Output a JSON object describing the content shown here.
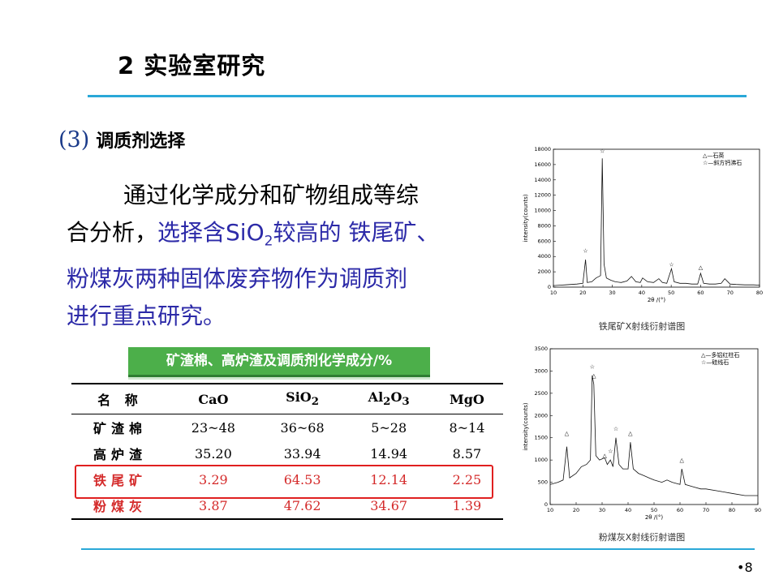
{
  "slide": {
    "title": "2 实验室研究",
    "section_num": "(3)",
    "section_title": "调质剂选择",
    "page": "•8"
  },
  "body": {
    "line1": "通过化学成分和矿物组成等综",
    "line2_black": "合分析，",
    "line2_blue_a": "选择含SiO",
    "line2_sub": "2",
    "line2_blue_b": "较高的 铁尾矿、",
    "line3": "粉煤灰两种固体废弃物作为调质剂",
    "line4": "进行重点研究。"
  },
  "table": {
    "title": "矿渣棉、高炉渣及调质剂化学成分/%",
    "headers": [
      "名  称",
      "CaO",
      "SiO",
      "Al",
      "MgO"
    ],
    "header_subs": {
      "sio2": "2",
      "al_a": "2",
      "al_b": "O",
      "al_c": "3"
    },
    "rows": [
      {
        "name": "矿渣棉",
        "CaO": "23~48",
        "SiO2": "36~68",
        "Al2O3": "5~28",
        "MgO": "8~14"
      },
      {
        "name": "高炉渣",
        "CaO": "35.20",
        "SiO2": "33.94",
        "Al2O3": "14.94",
        "MgO": "8.57"
      },
      {
        "name": "铁尾矿",
        "CaO": "3.29",
        "SiO2": "64.53",
        "Al2O3": "12.14",
        "MgO": "2.25"
      },
      {
        "name": "粉煤灰",
        "CaO": "3.87",
        "SiO2": "47.62",
        "Al2O3": "34.67",
        "MgO": "1.39"
      }
    ],
    "highlight_color": "#e02020"
  },
  "chart_data": [
    {
      "type": "line",
      "caption": "铁尾矿X射线衍射谱图",
      "xlabel": "2θ /(°)",
      "ylabel": "intensity(counts)",
      "xlim": [
        10,
        80
      ],
      "ylim": [
        0,
        18000
      ],
      "xticks": [
        10,
        20,
        30,
        40,
        50,
        60,
        70,
        80
      ],
      "yticks": [
        0,
        2000,
        4000,
        6000,
        8000,
        10000,
        12000,
        14000,
        16000,
        18000
      ],
      "legend": [
        "△—石英",
        "☆—斜方钙沸石"
      ],
      "legend_position": "top-right",
      "markers": [
        {
          "x": 20.9,
          "y": 4200,
          "symbol": "☆"
        },
        {
          "x": 26.6,
          "y": 17200,
          "symbol": "☆"
        },
        {
          "x": 50.1,
          "y": 2400,
          "symbol": "☆"
        },
        {
          "x": 60.0,
          "y": 2000,
          "symbol": "△"
        }
      ],
      "x": [
        10,
        12,
        14,
        16,
        18,
        20,
        20.9,
        21.5,
        23,
        24.5,
        26,
        26.6,
        27.2,
        28,
        29.5,
        31,
        33,
        35,
        36.5,
        38,
        39.5,
        40.3,
        42,
        44,
        45.8,
        47,
        48.5,
        50.1,
        51,
        53,
        55,
        57,
        59,
        60,
        61,
        63,
        65,
        67,
        68.2,
        70,
        72,
        75,
        78,
        80
      ],
      "values": [
        200,
        250,
        300,
        350,
        400,
        500,
        3600,
        600,
        700,
        1200,
        1500,
        16800,
        3000,
        1200,
        900,
        700,
        600,
        800,
        1400,
        700,
        600,
        1200,
        700,
        600,
        1100,
        600,
        500,
        2400,
        700,
        500,
        500,
        400,
        400,
        1800,
        500,
        400,
        400,
        500,
        1100,
        400,
        350,
        300,
        300,
        250
      ]
    },
    {
      "type": "line",
      "caption": "粉煤灰X射线衍射谱图",
      "xlabel": "2θ /(°)",
      "ylabel": "intensity(counts)",
      "xlim": [
        10,
        90
      ],
      "ylim": [
        0,
        3500
      ],
      "xticks": [
        10,
        20,
        30,
        40,
        50,
        60,
        70,
        80,
        90
      ],
      "yticks": [
        0,
        500,
        1000,
        1500,
        2000,
        2500,
        3000,
        3500
      ],
      "legend": [
        "△—多铝红柱石",
        "☆—硅线石"
      ],
      "legend_position": "top-right",
      "markers": [
        {
          "x": 16.4,
          "y": 1500,
          "symbol": "△"
        },
        {
          "x": 26.2,
          "y": 3000,
          "symbol": "☆"
        },
        {
          "x": 26.8,
          "y": 2800,
          "symbol": "△"
        },
        {
          "x": 31.0,
          "y": 1000,
          "symbol": "△"
        },
        {
          "x": 33.2,
          "y": 1100,
          "symbol": "☆"
        },
        {
          "x": 35.3,
          "y": 1600,
          "symbol": "☆"
        },
        {
          "x": 40.9,
          "y": 1500,
          "symbol": "△"
        },
        {
          "x": 60.7,
          "y": 900,
          "symbol": "△"
        }
      ],
      "x": [
        10,
        13,
        15,
        16.4,
        17.5,
        20,
        22,
        24,
        25.5,
        26.2,
        26.8,
        27.6,
        29,
        31,
        32,
        33.2,
        34.2,
        35.3,
        36.5,
        38,
        40,
        40.9,
        42,
        44,
        46,
        48,
        50,
        53,
        55,
        57,
        60,
        60.7,
        62,
        65,
        68,
        70,
        75,
        80,
        85,
        90
      ],
      "values": [
        450,
        500,
        550,
        1300,
        600,
        700,
        850,
        900,
        1000,
        2900,
        2700,
        1100,
        1000,
        1050,
        900,
        1000,
        850,
        1500,
        900,
        800,
        800,
        1400,
        800,
        700,
        650,
        600,
        550,
        500,
        550,
        500,
        450,
        800,
        450,
        400,
        350,
        350,
        300,
        250,
        200,
        200
      ]
    }
  ]
}
